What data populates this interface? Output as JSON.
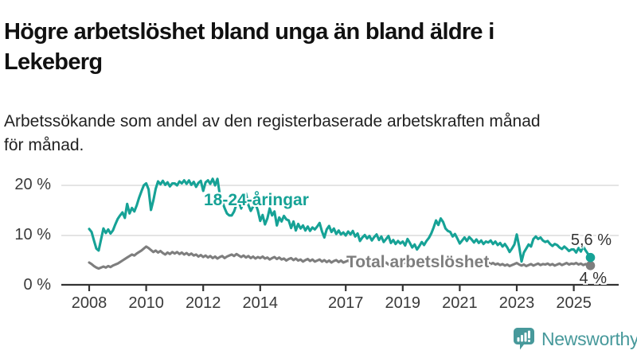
{
  "header": {
    "title_lines": [
      "Högre arbetslöshet bland unga än bland äldre i",
      "Lekeberg"
    ],
    "subtitle_lines": [
      "Arbetssökande som andel av den registerbaserade arbetskraften månad",
      "för månad."
    ]
  },
  "chart_data": {
    "type": "line",
    "unit": "%",
    "x_unit": "month",
    "x_start_year": 2008,
    "x_points_per_year": 12,
    "ylim": [
      0,
      22
    ],
    "grid": "horizontal",
    "legend_position": "inline-labels",
    "yticks": [
      {
        "value": 20,
        "label": "20 %"
      },
      {
        "value": 10,
        "label": "10 %"
      },
      {
        "value": 0,
        "label": "0 %"
      }
    ],
    "xticks": [
      "2008",
      "2010",
      "2012",
      "2014",
      "2017",
      "2019",
      "2021",
      "2023",
      "2025"
    ],
    "axis_color": "#333333",
    "grid_color": "#e4e4e4",
    "series": [
      {
        "name": "18-24-åringar",
        "color": "#16a296",
        "end_label": "5,6 %",
        "end_value": 5.6,
        "values": [
          11.3,
          10.7,
          9.0,
          7.4,
          7.0,
          9.2,
          11.4,
          10.5,
          11.2,
          10.4,
          11.0,
          12.2,
          13.3,
          14.0,
          14.6,
          13.5,
          16.3,
          14.4,
          15.5,
          14.8,
          16.0,
          17.5,
          18.8,
          20.0,
          20.4,
          19.2,
          15.1,
          17.0,
          19.3,
          20.8,
          20.2,
          20.9,
          20.1,
          20.6,
          19.8,
          20.4,
          20.4,
          20.0,
          20.8,
          20.4,
          21.0,
          20.3,
          21.0,
          20.1,
          20.7,
          19.7,
          20.5,
          20.9,
          18.9,
          20.6,
          21.0,
          20.3,
          21.3,
          20.0,
          21.3,
          18.1,
          16.8,
          15.5,
          14.4,
          14.0,
          14.0,
          14.8,
          16.2,
          16.8,
          15.4,
          17.0,
          18.4,
          16.1,
          14.9,
          15.8,
          16.4,
          15.0,
          12.9,
          14.1,
          12.2,
          13.4,
          15.4,
          14.0,
          14.8,
          12.0,
          13.6,
          12.8,
          13.9,
          13.2,
          13.0,
          11.5,
          12.8,
          11.0,
          12.3,
          11.4,
          12.0,
          11.0,
          11.8,
          10.9,
          11.6,
          11.2,
          11.8,
          12.5,
          10.8,
          9.6,
          11.2,
          11.9,
          10.7,
          11.4,
          10.3,
          11.0,
          10.2,
          10.6,
          10.0,
          10.8,
          10.2,
          10.9,
          9.8,
          10.4,
          8.9,
          9.6,
          10.1,
          9.4,
          9.9,
          9.0,
          9.7,
          10.2,
          9.1,
          9.8,
          8.7,
          9.3,
          9.9,
          8.5,
          9.1,
          8.3,
          8.9,
          8.4,
          8.8,
          8.0,
          9.3,
          8.5,
          7.6,
          8.2,
          7.2,
          7.9,
          8.7,
          8.1,
          8.9,
          9.5,
          10.4,
          11.6,
          13.0,
          12.1,
          13.4,
          12.7,
          11.4,
          10.9,
          10.7,
          9.8,
          10.3,
          9.4,
          8.4,
          9.0,
          9.6,
          8.9,
          9.7,
          9.2,
          8.6,
          9.2,
          8.5,
          9.0,
          8.3,
          8.8,
          8.6,
          9.0,
          8.3,
          8.8,
          8.1,
          8.5,
          7.8,
          8.3,
          7.6,
          6.7,
          7.4,
          8.2,
          10.2,
          7.8,
          4.8,
          6.6,
          7.4,
          8.2,
          7.8,
          9.3,
          9.8,
          9.3,
          9.6,
          9.0,
          8.7,
          8.9,
          8.3,
          7.9,
          8.3,
          8.1,
          7.6,
          7.3,
          7.8,
          7.4,
          6.9,
          7.2,
          7.2,
          6.6,
          7.5,
          6.8,
          7.8,
          7.0,
          6.3,
          5.6
        ]
      },
      {
        "name": "Total arbetslöshet",
        "color": "#7e7e7e",
        "end_label": "4 %",
        "end_value": 4.0,
        "values": [
          4.6,
          4.3,
          3.9,
          3.6,
          3.4,
          3.6,
          3.8,
          3.6,
          3.9,
          3.7,
          4.0,
          4.2,
          4.4,
          4.7,
          5.0,
          5.3,
          5.6,
          5.9,
          6.2,
          6.0,
          6.4,
          6.7,
          7.0,
          7.4,
          7.8,
          7.5,
          7.1,
          6.7,
          7.0,
          6.6,
          6.9,
          6.5,
          6.2,
          6.6,
          6.3,
          6.7,
          6.4,
          6.7,
          6.3,
          6.6,
          6.2,
          6.5,
          6.1,
          6.4,
          6.0,
          6.2,
          5.8,
          6.1,
          5.7,
          6.0,
          5.6,
          5.9,
          5.5,
          5.8,
          5.4,
          5.7,
          5.9,
          5.5,
          5.8,
          6.0,
          6.2,
          5.9,
          6.3,
          6.0,
          5.7,
          6.0,
          5.6,
          5.9,
          5.5,
          5.8,
          5.4,
          5.7,
          5.5,
          5.8,
          5.4,
          5.6,
          5.2,
          5.5,
          5.7,
          5.3,
          5.6,
          5.2,
          5.4,
          5.0,
          5.3,
          5.5,
          5.1,
          5.4,
          5.0,
          5.2,
          4.8,
          5.1,
          5.3,
          4.9,
          5.2,
          4.8,
          5.0,
          5.2,
          4.8,
          5.1,
          4.7,
          5.0,
          4.6,
          4.9,
          5.1,
          4.7,
          5.0,
          4.6,
          4.8,
          5.0,
          4.6,
          4.9,
          4.5,
          4.8,
          4.4,
          4.7,
          4.9,
          4.5,
          4.8,
          4.4,
          4.6,
          4.8,
          4.4,
          4.7,
          4.3,
          4.6,
          4.2,
          4.5,
          4.7,
          4.3,
          4.6,
          4.2,
          4.4,
          4.6,
          4.2,
          4.5,
          4.1,
          4.4,
          4.0,
          4.3,
          4.5,
          4.1,
          4.4,
          4.6,
          4.8,
          5.0,
          5.3,
          5.5,
          5.2,
          5.4,
          5.0,
          5.2,
          4.9,
          5.1,
          4.8,
          5.0,
          5.2,
          4.9,
          5.1,
          4.8,
          5.0,
          4.7,
          4.9,
          4.6,
          4.8,
          4.5,
          4.7,
          4.4,
          4.6,
          4.3,
          4.5,
          4.2,
          4.4,
          4.1,
          4.3,
          4.0,
          4.2,
          3.9,
          4.1,
          4.3,
          4.5,
          4.2,
          4.0,
          4.2,
          3.9,
          4.1,
          4.3,
          4.0,
          4.2,
          4.4,
          4.1,
          4.3,
          4.2,
          4.4,
          4.1,
          4.3,
          4.0,
          4.2,
          4.4,
          4.1,
          4.3,
          4.5,
          4.2,
          4.4,
          4.3,
          4.5,
          4.2,
          4.4,
          4.1,
          4.3,
          4.1,
          4.0
        ]
      }
    ]
  },
  "branding": {
    "logo_text": "Newsworthy",
    "logo_color": "#47999b",
    "logo_icon": "bar-chart-speech-bubble-icon"
  }
}
